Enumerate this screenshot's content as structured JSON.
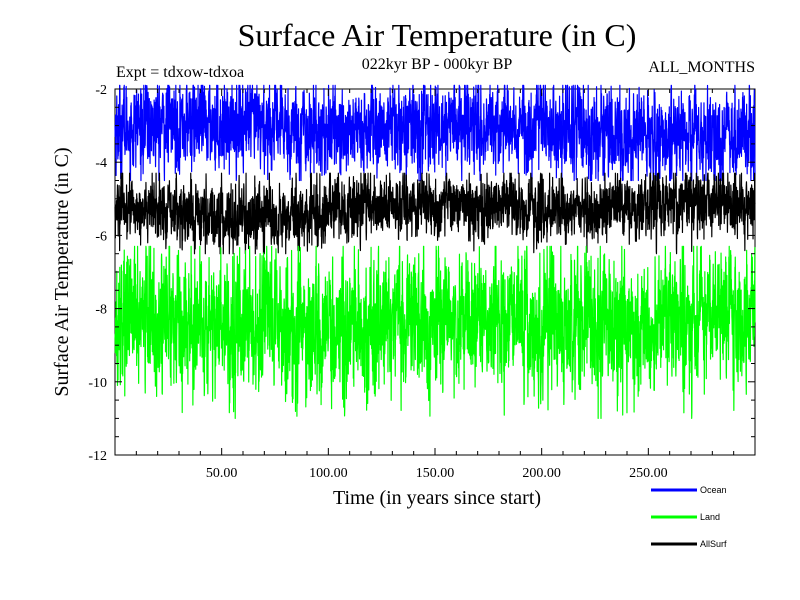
{
  "chart_data": {
    "type": "line",
    "title": "Surface Air Temperature (in C)",
    "subtitle": "022kyr BP - 000kyr BP",
    "left_note": "Expt = tdxow-tdxoa",
    "right_note": "ALL_MONTHS",
    "xlabel": "Time (in years since start)",
    "ylabel": "Surface Air Temperature (in C)",
    "xlim": [
      0,
      300
    ],
    "ylim": [
      -12,
      -2
    ],
    "x_ticks": [
      50,
      100,
      150,
      200,
      250
    ],
    "x_tick_labels": [
      "50.00",
      "100.00",
      "150.00",
      "200.00",
      "250.00"
    ],
    "y_ticks": [
      -12,
      -10,
      -8,
      -6,
      -4,
      -2
    ],
    "y_tick_labels": [
      "-12",
      "-10",
      "-8",
      "-6",
      "-4",
      "-2"
    ],
    "grid": false,
    "legend_position": "bottom-right, below plot",
    "n_points_per_series": 3600,
    "series": [
      {
        "name": "Ocean",
        "color": "#0000ff",
        "mean": -3.1,
        "typical_range": [
          -4.4,
          -2.0
        ],
        "extreme_range": [
          -4.5,
          -1.9
        ]
      },
      {
        "name": "Land",
        "color": "#00ff00",
        "mean": -8.4,
        "typical_range": [
          -10.2,
          -6.6
        ],
        "extreme_range": [
          -11.0,
          -6.3
        ]
      },
      {
        "name": "AllSurf",
        "color": "#000000",
        "mean": -5.3,
        "typical_range": [
          -6.2,
          -4.5
        ],
        "extreme_range": [
          -6.5,
          -4.3
        ]
      }
    ]
  }
}
